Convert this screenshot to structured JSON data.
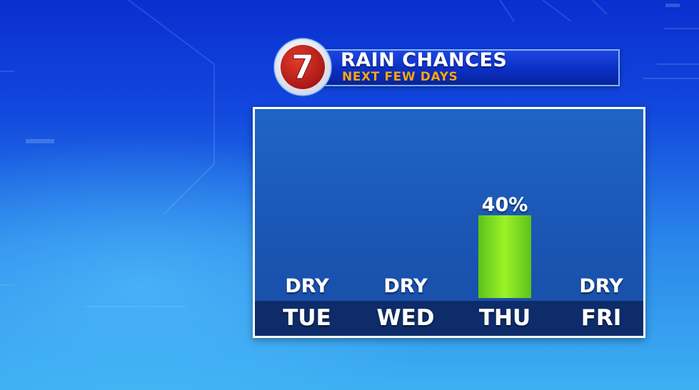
{
  "header": {
    "logo_text": "7",
    "title": "RAIN CHANCES",
    "subtitle": "NEXT FEW DAYS"
  },
  "colors": {
    "title_bar": "#0b2fc4",
    "subtitle": "#f6a61a",
    "panel": "#1a55b3",
    "day_strip": "#0e2c6a",
    "bar": "#8ce81c",
    "logo_red": "#c81e1e"
  },
  "chart_data": {
    "type": "bar",
    "title": "RAIN CHANCES",
    "subtitle": "NEXT FEW DAYS",
    "categories": [
      "TUE",
      "WED",
      "THU",
      "FRI"
    ],
    "values": [
      0,
      0,
      40,
      0
    ],
    "value_labels": [
      "DRY",
      "DRY",
      "40%",
      "DRY"
    ],
    "unit": "%",
    "ylim": [
      0,
      100
    ],
    "grid": false,
    "legend": "none"
  }
}
